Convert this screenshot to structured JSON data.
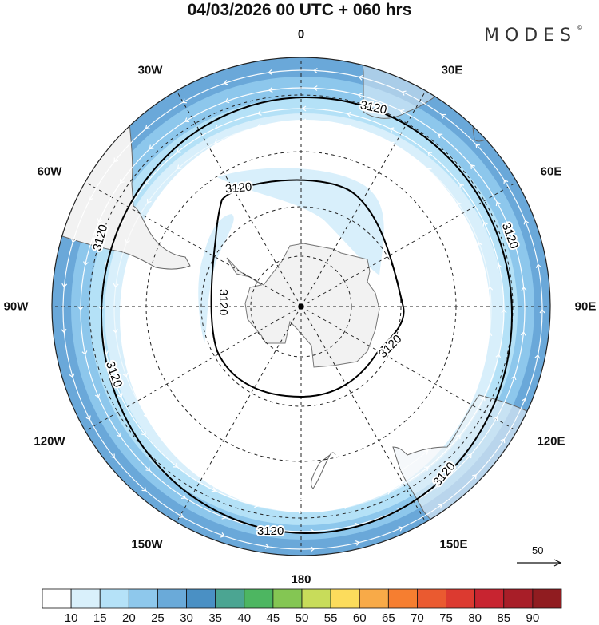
{
  "title": "04/03/2026  00 UTC  + 060 hrs",
  "logo": {
    "text": "MODES",
    "mark": "©"
  },
  "longitude_labels": [
    "0",
    "30E",
    "60E",
    "90E",
    "120E",
    "150E",
    "180",
    "150W",
    "120W",
    "90W",
    "60W",
    "30W"
  ],
  "contour_label": "3120",
  "reference_vector": {
    "label": "50",
    "icon": "arrow-right-icon"
  },
  "colorbar": {
    "colors": [
      "#ffffff",
      "#d9f0fb",
      "#b5e2f8",
      "#8ec8ec",
      "#6aaad9",
      "#4a90c4",
      "#4ba592",
      "#4db661",
      "#84c653",
      "#c8dc5a",
      "#fcdc5c",
      "#f8aa48",
      "#f67e30",
      "#ea5a30",
      "#dc3a30",
      "#c82430",
      "#a81e28",
      "#901c20"
    ],
    "labels": [
      "10",
      "15",
      "20",
      "25",
      "30",
      "35",
      "40",
      "45",
      "50",
      "55",
      "60",
      "65",
      "70",
      "75",
      "80",
      "85",
      "90"
    ]
  },
  "colors": {
    "band30": "#6aa8d9",
    "band25": "#8dc7ec",
    "band20": "#b4e1f7",
    "band15": "#d8effb",
    "land": "#f2f2f2",
    "coast": "#666666"
  }
}
